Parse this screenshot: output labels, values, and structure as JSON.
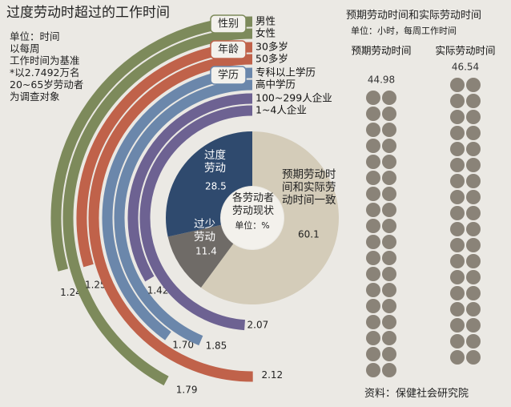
{
  "header": {
    "title": "过度劳动时超过的工作时间"
  },
  "notes": [
    "单位：时间",
    "以每周",
    "工作时间为基准",
    "*以2.7492万名",
    "20~65岁劳动者",
    "为调查对象"
  ],
  "arcs": {
    "groups": [
      {
        "label": "性别",
        "color": "#7d8a5b",
        "items": [
          {
            "name": "男性",
            "value": 1.24
          },
          {
            "name": "女性",
            "value": 1.79
          }
        ]
      },
      {
        "label": "年龄",
        "color": "#c0624a",
        "items": [
          {
            "name": "30多岁",
            "value": 1.25
          },
          {
            "name": "50多岁",
            "value": 2.12
          }
        ]
      },
      {
        "label": "学历",
        "color": "#6b87ab",
        "items": [
          {
            "name": "专科以上学历",
            "value": 1.7,
            "value_label": "1.70"
          },
          {
            "name": "高中学历",
            "value": 1.85
          }
        ]
      },
      {
        "color": "#6d6292",
        "items": [
          {
            "name": "100~299人企业",
            "value": 1.42
          },
          {
            "name": "1~4人企业",
            "value": 2.07
          }
        ]
      }
    ]
  },
  "pie": {
    "title": "各劳动者劳动现状",
    "unit": "单位：%",
    "categories": [
      "预期劳动时间和实际劳动时间一致",
      "过少劳动",
      "过度劳动"
    ],
    "values": [
      60.1,
      11.4,
      28.5
    ],
    "colors": [
      "#d4ccb9",
      "#6f6b67",
      "#2f4a6e"
    ]
  },
  "hours": {
    "title": "预期劳动时间和实际劳动时间",
    "unit": "单位：小时，每周工作时间",
    "categories": [
      "预期劳动时间",
      "实际劳动时间"
    ],
    "values": [
      44.98,
      46.54
    ],
    "color": "#8a8378"
  },
  "source": "资料：保健社会研究院"
}
